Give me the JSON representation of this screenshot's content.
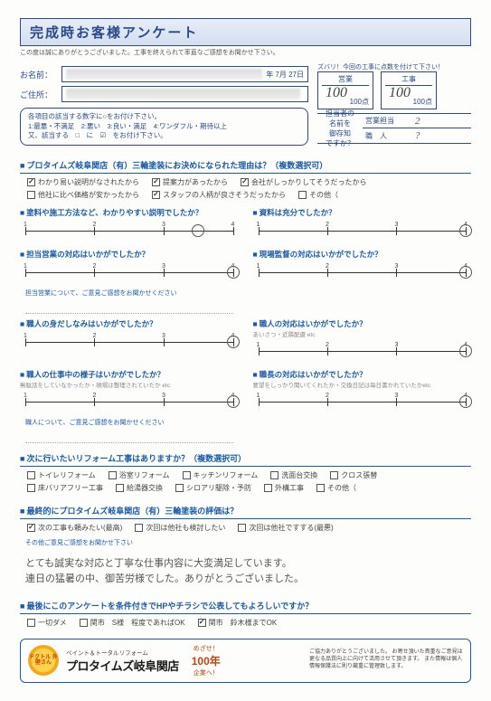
{
  "header": {
    "title": "完成時お客様アンケート",
    "subtitle": "この度は誠にありがとうございました。工事を終えられて率直なご感想をお聞かせ下さい。",
    "score_hint": "ズバリ！今回の工事に点数を付けて下さい！"
  },
  "scores": {
    "sales": {
      "label": "営業",
      "hand": "100",
      "denom": "100点"
    },
    "work": {
      "label": "工事",
      "hand": "100",
      "denom": "100点"
    }
  },
  "fields": {
    "name_label": "お名前：",
    "date": "年 7月 27日",
    "addr_label": "ご住所："
  },
  "tantou": {
    "l1a": "担当者の",
    "l1b": "名前を",
    "l2a": "御存知",
    "l2b": "ですか？",
    "c1": "営業担当",
    "c2": "職　人",
    "v1": "2",
    "v2": "?"
  },
  "instructions": {
    "l1": "各項目の該当する数字に○をお付け下さい。",
    "l2": "1:最悪・不満足　2:悪い　3:良い・満足　4:ワンダフル・期待以上",
    "l3": "又、該当する　□　に　☑　をお付け下さい。"
  },
  "q1": {
    "title": "プロタイムズ岐阜関店（有）三輪塗装にお決めになられた理由は？（複数選択可）",
    "opts": [
      {
        "t": "わかり易い説明がなされたから",
        "c": true
      },
      {
        "t": "提案力があったから",
        "c": true
      },
      {
        "t": "会社がしっかりしてそうだったから",
        "c": true
      },
      {
        "t": "他社に比べ価格が安かったから",
        "c": false
      },
      {
        "t": "スタッフの人柄が良さそうだったから",
        "c": true
      },
      {
        "t": "その他（",
        "c": false
      }
    ]
  },
  "scales": [
    {
      "l": {
        "q": "塗料や施工方法など、わかりやすい説明でしたか？",
        "sel": 3.5
      },
      "r": {
        "q": "資料は充分でしたか？",
        "sel": 4
      }
    },
    {
      "l": {
        "q": "担当営業の対応はいかがでしたか？",
        "sel": 4,
        "note": "担当営業について、ご意見ご感想をお聞かせください"
      },
      "r": {
        "q": "現場監督の対応はいかがでしたか？",
        "sel": 4
      }
    },
    {
      "l": {
        "q": "職人の身だしなみはいかがでしたか？",
        "sel": 4
      },
      "r": {
        "q": "職人の対応はいかがでしたか？",
        "sub": "あいさつ・近隣配慮 etc",
        "sel": 4
      }
    },
    {
      "l": {
        "q": "職人の仕事中の様子はいかがでしたか？",
        "sub": "無駄話をしていなかったか・現場は整理されていたか etc",
        "sel": 4,
        "note": "職人について、ご意見ご感想をお聞かせください"
      },
      "r": {
        "q": "職長の対応はいかがでしたか？",
        "sub": "要望をしっかり聞いてくれたか・交換日記は毎日書かれていたかetc",
        "sel": 4
      }
    }
  ],
  "q_reform": {
    "title": "次に行いたいリフォーム工事はありますか？（複数選択可）",
    "opts": [
      "トイレリフォーム",
      "浴室リフォーム",
      "キッチンリフォーム",
      "洗面台交換",
      "クロス張替",
      "床バリアフリー工事",
      "給湯器交換",
      "シロアリ駆除・予防",
      "外構工事",
      "その他（"
    ]
  },
  "q_eval": {
    "title": "最終的にプロタイムズ岐阜関店（有）三輪塗装の評価は？",
    "opts": [
      {
        "t": "次の工事も頼みたい(最高)",
        "c": true
      },
      {
        "t": "次回は他社も検討したい",
        "c": false
      },
      {
        "t": "次回は他社ですする(最悪)",
        "c": false
      }
    ],
    "note": "その他ご意見ご感想をお聞かせ下さい",
    "hand1": "とても誠実な対応と丁寧な仕事内容に大変満足しています。",
    "hand2": "連日の猛暑の中、御苦労様でした。ありがとうございました。"
  },
  "q_pub": {
    "title": "最後にこのアンケートを条件付きでHPやチラシで公表してもよろしいですか？",
    "opts": [
      {
        "t": "一切ダメ",
        "c": false
      },
      {
        "t": "関市　S様　程度であればOK",
        "c": false
      },
      {
        "t": "関市　鈴木様までOK",
        "c": true
      }
    ]
  },
  "footer": {
    "badge": "ドクトル\n外壁さん",
    "small": "ペイント＆トータルリフォーム",
    "brand": "プロタイムズ岐阜関店",
    "mezase_s": "めざせ！",
    "mezase_b": "100年",
    "mezase_c": "企業へ！",
    "right": "ご協力ありがとうございました。\nお寄せ頂いた貴重なご意見は更なる品質向上に向けて活用させて頂きます。\nまた情報は個人情報保護法に則り厳重に管理致します。"
  },
  "colors": {
    "blue": "#1a5aa8"
  }
}
